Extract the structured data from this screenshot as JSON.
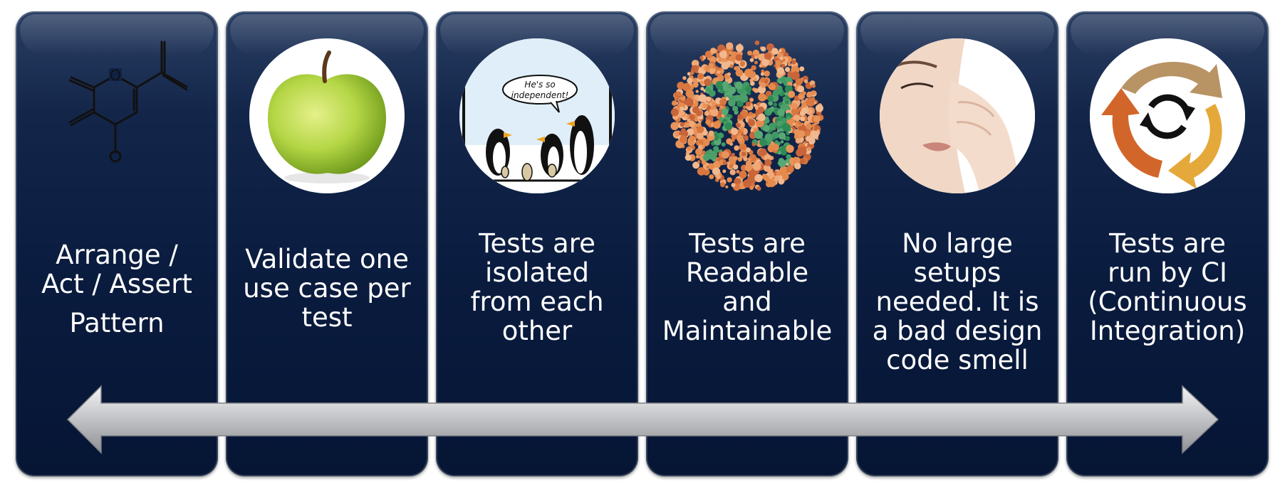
{
  "panels": [
    {
      "icon": "molecule-icon",
      "lines": [
        "Arrange /",
        "Act / Assert",
        "Pattern"
      ]
    },
    {
      "icon": "apple-icon",
      "lines": [
        "Validate one",
        "use case per",
        "test"
      ]
    },
    {
      "icon": "penguins-cartoon-icon",
      "speech": [
        "He's so",
        "independent!"
      ],
      "lines": [
        "Tests are",
        "isolated",
        "from each",
        "other"
      ]
    },
    {
      "icon": "color-blind-test-icon",
      "lines": [
        "Tests are",
        "Readable",
        "and",
        "Maintainable"
      ]
    },
    {
      "icon": "nose-pinch-icon",
      "lines": [
        "No large",
        "setups",
        "needed. It is",
        "a bad design",
        "code smell"
      ]
    },
    {
      "icon": "refresh-cycle-icon",
      "lines": [
        "Tests are",
        "run by CI",
        "(Continuous",
        "Integration)"
      ]
    }
  ],
  "colors": {
    "panel_top": "#2a3e63",
    "panel_bottom": "#061534",
    "text": "#ffffff",
    "arrow": "#b9babd"
  }
}
